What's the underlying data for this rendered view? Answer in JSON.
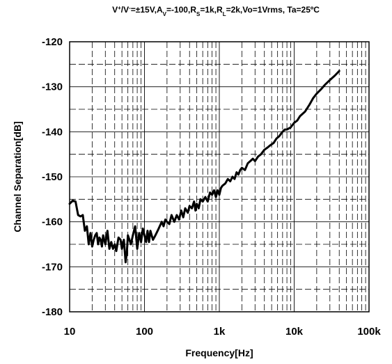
{
  "chart_data": {
    "type": "line",
    "title": "V⁺/V⁻=±15V,A_V=-100,R_S=1k,R_L=2k,Vo=1Vrms, Ta=25ºC",
    "title_parts": [
      {
        "t": "V",
        "s": "normal"
      },
      {
        "t": "+",
        "s": "sup"
      },
      {
        "t": "/V",
        "s": "normal"
      },
      {
        "t": "-",
        "s": "sup"
      },
      {
        "t": "=±15V,A",
        "s": "normal"
      },
      {
        "t": "V",
        "s": "sub"
      },
      {
        "t": "=-100,R",
        "s": "normal"
      },
      {
        "t": "S",
        "s": "sub"
      },
      {
        "t": "=1k,R",
        "s": "normal"
      },
      {
        "t": "L",
        "s": "sub"
      },
      {
        "t": "=2k,Vo=1Vrms, Ta=25ºC",
        "s": "normal"
      }
    ],
    "xlabel": "Frequency[Hz]",
    "ylabel": "Channel Separation[dB]",
    "x_scale": "log",
    "xlim": [
      10,
      100000
    ],
    "ylim": [
      -180,
      -120
    ],
    "x_ticks": [
      10,
      100,
      1000,
      10000,
      100000
    ],
    "x_tick_labels": [
      "10",
      "100",
      "1k",
      "10k",
      "100k"
    ],
    "y_ticks": [
      -120,
      -130,
      -140,
      -150,
      -160,
      -170,
      -180
    ],
    "y_tick_labels": [
      "-120",
      "-130",
      "-140",
      "-150",
      "-160",
      "-170",
      "-180"
    ],
    "grid": true,
    "legend": "none",
    "series": [
      {
        "color": "#000000",
        "points": [
          [
            10,
            -156.0
          ],
          [
            11,
            -155.3
          ],
          [
            12,
            -155.5
          ],
          [
            13,
            -158.5
          ],
          [
            14,
            -158.8
          ],
          [
            15,
            -158.5
          ],
          [
            16,
            -162.0
          ],
          [
            17,
            -161.0
          ],
          [
            18,
            -165.0
          ],
          [
            19,
            -162.5
          ],
          [
            20,
            -165.5
          ],
          [
            21,
            -164.0
          ],
          [
            22,
            -163.0
          ],
          [
            23,
            -162.5
          ],
          [
            24,
            -165.0
          ],
          [
            25,
            -163.5
          ],
          [
            26,
            -164.0
          ],
          [
            27,
            -165.5
          ],
          [
            28,
            -163.0
          ],
          [
            29,
            -164.0
          ],
          [
            30,
            -165.0
          ],
          [
            32,
            -162.0
          ],
          [
            34,
            -166.0
          ],
          [
            36,
            -164.5
          ],
          [
            38,
            -166.0
          ],
          [
            40,
            -165.0
          ],
          [
            42,
            -166.5
          ],
          [
            45,
            -163.5
          ],
          [
            48,
            -164.0
          ],
          [
            50,
            -166.0
          ],
          [
            53,
            -164.0
          ],
          [
            56,
            -169.0
          ],
          [
            58,
            -167.0
          ],
          [
            60,
            -163.0
          ],
          [
            63,
            -164.0
          ],
          [
            66,
            -165.0
          ],
          [
            70,
            -163.0
          ],
          [
            75,
            -161.0
          ],
          [
            80,
            -166.0
          ],
          [
            85,
            -162.5
          ],
          [
            90,
            -164.5
          ],
          [
            95,
            -161.5
          ],
          [
            100,
            -163.0
          ],
          [
            105,
            -164.5
          ],
          [
            110,
            -162.0
          ],
          [
            115,
            -164.5
          ],
          [
            120,
            -162.0
          ],
          [
            130,
            -164.0
          ],
          [
            140,
            -163.0
          ],
          [
            150,
            -162.0
          ],
          [
            160,
            -161.0
          ],
          [
            170,
            -160.0
          ],
          [
            180,
            -161.0
          ],
          [
            190,
            -159.5
          ],
          [
            200,
            -160.0
          ],
          [
            215,
            -160.5
          ],
          [
            230,
            -158.5
          ],
          [
            250,
            -160.0
          ],
          [
            270,
            -158.5
          ],
          [
            290,
            -159.5
          ],
          [
            310,
            -157.5
          ],
          [
            330,
            -159.0
          ],
          [
            350,
            -157.0
          ],
          [
            380,
            -158.0
          ],
          [
            400,
            -156.5
          ],
          [
            430,
            -157.0
          ],
          [
            460,
            -155.5
          ],
          [
            480,
            -157.5
          ],
          [
            500,
            -156.0
          ],
          [
            530,
            -157.0
          ],
          [
            560,
            -155.0
          ],
          [
            600,
            -155.5
          ],
          [
            650,
            -154.5
          ],
          [
            700,
            -155.5
          ],
          [
            750,
            -153.5
          ],
          [
            800,
            -154.0
          ],
          [
            850,
            -153.0
          ],
          [
            900,
            -154.5
          ],
          [
            950,
            -153.0
          ],
          [
            1000,
            -154.0
          ],
          [
            1050,
            -152.5
          ],
          [
            1100,
            -152.0
          ],
          [
            1200,
            -151.5
          ],
          [
            1300,
            -150.5
          ],
          [
            1400,
            -151.0
          ],
          [
            1500,
            -150.0
          ],
          [
            1600,
            -150.5
          ],
          [
            1700,
            -149.0
          ],
          [
            1800,
            -149.5
          ],
          [
            1900,
            -148.5
          ],
          [
            2000,
            -148.0
          ],
          [
            2200,
            -148.5
          ],
          [
            2400,
            -147.0
          ],
          [
            2600,
            -146.5
          ],
          [
            2800,
            -146.0
          ],
          [
            3000,
            -146.5
          ],
          [
            3300,
            -145.5
          ],
          [
            3600,
            -145.0
          ],
          [
            4000,
            -144.0
          ],
          [
            4400,
            -143.5
          ],
          [
            4800,
            -143.0
          ],
          [
            5300,
            -142.5
          ],
          [
            5800,
            -141.5
          ],
          [
            6300,
            -141.0
          ],
          [
            7000,
            -140.0
          ],
          [
            7500,
            -139.5
          ],
          [
            8000,
            -139.5
          ],
          [
            9000,
            -139.0
          ],
          [
            10000,
            -138.0
          ],
          [
            11000,
            -137.5
          ],
          [
            12000,
            -136.5
          ],
          [
            14000,
            -135.5
          ],
          [
            16000,
            -134.0
          ],
          [
            18000,
            -132.5
          ],
          [
            20000,
            -131.5
          ],
          [
            23000,
            -130.5
          ],
          [
            26000,
            -129.5
          ],
          [
            30000,
            -128.5
          ],
          [
            35000,
            -127.5
          ],
          [
            40000,
            -126.5
          ]
        ]
      }
    ]
  }
}
